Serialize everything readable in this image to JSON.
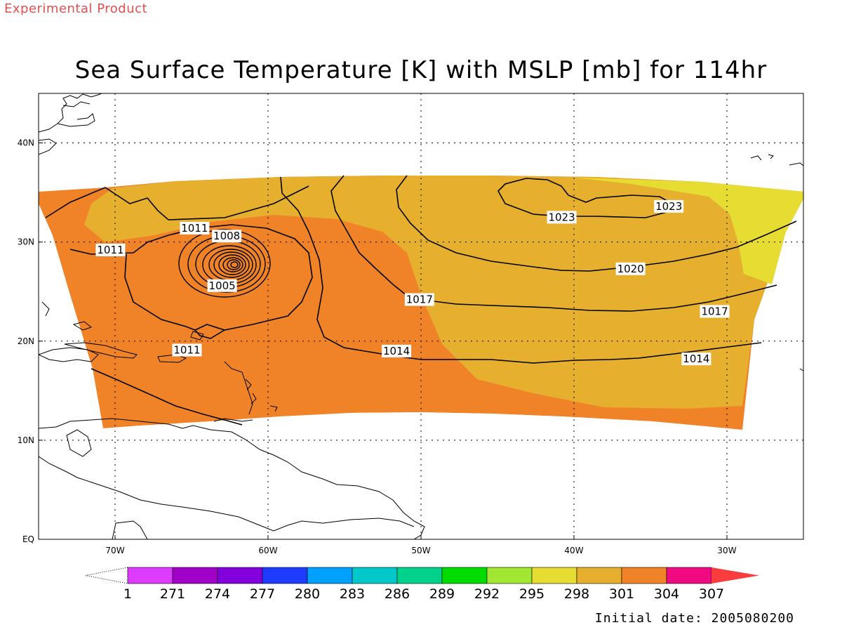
{
  "header": {
    "experimental_note": "Experimental Product",
    "title": "Sea Surface Temperature [K] with MSLP [mb] for 114hr"
  },
  "footer": {
    "initial_date": "Initial date: 2005080200"
  },
  "map": {
    "lon_range": [
      -75,
      -25
    ],
    "lat_range": [
      0,
      45
    ],
    "lon_ticks": [
      {
        "lon": -70,
        "label": "70W"
      },
      {
        "lon": -60,
        "label": "60W"
      },
      {
        "lon": -50,
        "label": "50W"
      },
      {
        "lon": -40,
        "label": "40W"
      },
      {
        "lon": -30,
        "label": "30W"
      }
    ],
    "lat_ticks": [
      {
        "lat": 0,
        "label": "EQ"
      },
      {
        "lat": 10,
        "label": "10N"
      },
      {
        "lat": 20,
        "label": "20N"
      },
      {
        "lat": 30,
        "label": "30N"
      },
      {
        "lat": 40,
        "label": "40N"
      }
    ],
    "grid": "dotted",
    "storm_center": {
      "lon": -62.5,
      "lat": 27.5
    },
    "isobar_labels": [
      {
        "text": "1011",
        "lon": -64.8,
        "lat": 31.4
      },
      {
        "text": "1011",
        "lon": -70.3,
        "lat": 29.2
      },
      {
        "text": "1008",
        "lon": -62.7,
        "lat": 30.6
      },
      {
        "text": "1005",
        "lon": -63.0,
        "lat": 25.6
      },
      {
        "text": "1011",
        "lon": -65.3,
        "lat": 19.1
      },
      {
        "text": "1014",
        "lon": -51.6,
        "lat": 19.0
      },
      {
        "text": "1017",
        "lon": -50.1,
        "lat": 24.2
      },
      {
        "text": "1017",
        "lon": -30.8,
        "lat": 23.0
      },
      {
        "text": "1014",
        "lon": -32.0,
        "lat": 18.2
      },
      {
        "text": "1020",
        "lon": -36.3,
        "lat": 27.3
      },
      {
        "text": "1023",
        "lon": -40.8,
        "lat": 32.5
      },
      {
        "text": "1023",
        "lon": -33.8,
        "lat": 33.6
      }
    ]
  },
  "colorbar": {
    "colors": [
      "#ffffff",
      "#dd3cff",
      "#a000c8",
      "#8200dc",
      "#1e3cff",
      "#00a0ff",
      "#00c8c8",
      "#00d28c",
      "#00dc00",
      "#a0e632",
      "#e6dc32",
      "#e6af2d",
      "#f08228",
      "#f00a82",
      "#fa3c3c"
    ],
    "labels": [
      "1",
      "271",
      "274",
      "277",
      "280",
      "283",
      "286",
      "289",
      "292",
      "295",
      "298",
      "301",
      "304",
      "307"
    ]
  }
}
